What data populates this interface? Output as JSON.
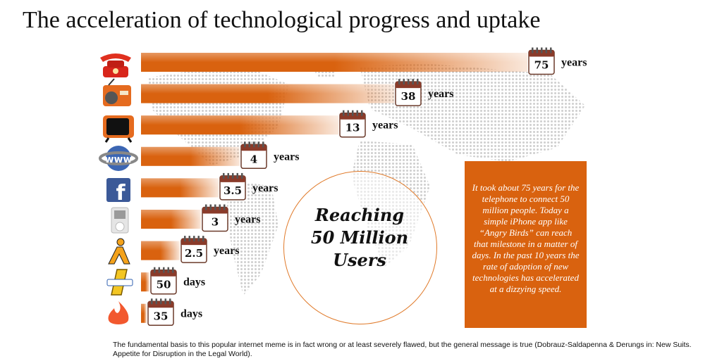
{
  "title": "The acceleration of  technological progress and uptake",
  "chart_data": {
    "type": "bar",
    "orientation": "horizontal",
    "categories": [
      "telephone-icon",
      "radio-icon",
      "television-icon",
      "www-icon",
      "facebook-icon",
      "ipod-icon",
      "aim-icon",
      "draw-something-icon",
      "tinder-icon"
    ],
    "values": [
      75,
      38,
      13,
      4,
      3.5,
      3,
      2.5,
      50,
      35
    ],
    "value_labels": [
      "75",
      "38",
      "13",
      "4",
      "3.5",
      "3",
      "2.5",
      "50",
      "35"
    ],
    "units": [
      "years",
      "years",
      "years",
      "years",
      "years",
      "years",
      "years",
      "days",
      "days"
    ],
    "bar_color": "#d9620f"
  },
  "center": {
    "line1": "Reaching",
    "line2": "50 Million",
    "line3": "Users"
  },
  "info_box": "It took about 75 years for the telephone to connect 50 million people. Today a simple iPhone app like “Angry Birds” can reach that milestone in a matter of days. In the past 10 years the rate of adoption of new technologies has accelerated at a dizzying speed.",
  "footnote": "The fundamental basis to this popular internet meme is in fact wrong or at least severely flawed, but the general message is true (Dobrauz-Saldapenna & Derungs in: New Suits. Appetite for Disruption in the Legal World)."
}
